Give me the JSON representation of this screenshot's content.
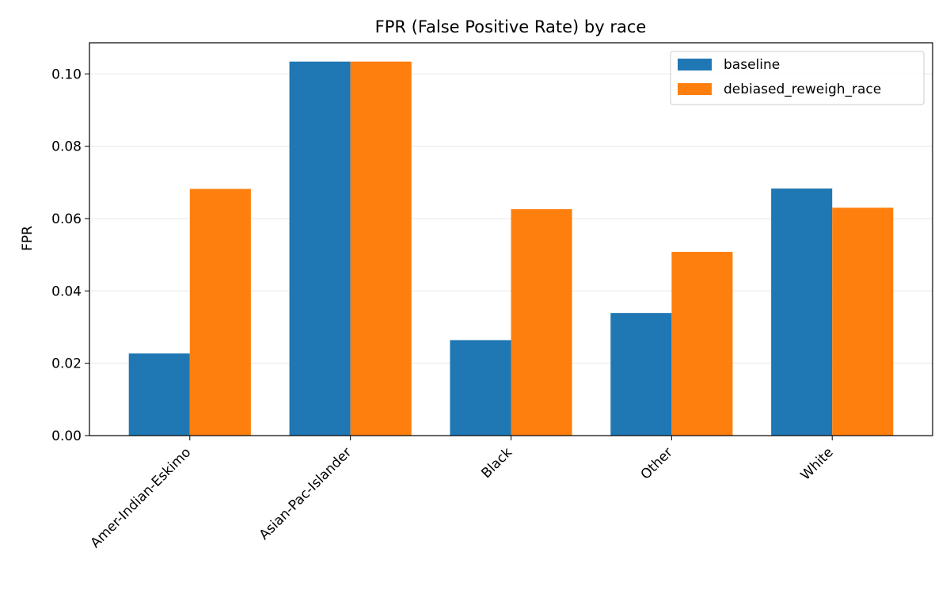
{
  "chart_data": {
    "type": "bar",
    "title": "FPR (False Positive Rate) by race",
    "xlabel": "",
    "ylabel": "FPR",
    "categories": [
      "Amer-Indian-Eskimo",
      "Asian-Pac-Islander",
      "Black",
      "Other",
      "White"
    ],
    "series": [
      {
        "name": "baseline",
        "color": "#1f77b4",
        "values": [
          0.0227,
          0.1034,
          0.0264,
          0.0339,
          0.0683
        ]
      },
      {
        "name": "debiased_reweigh_race",
        "color": "#ff7f0e",
        "values": [
          0.0682,
          0.1034,
          0.0626,
          0.0508,
          0.063
        ]
      }
    ],
    "ylim": [
      0,
      0.1086
    ],
    "yticks": [
      "0.00",
      "0.02",
      "0.04",
      "0.06",
      "0.08",
      "0.10"
    ],
    "grid": "horizontal",
    "legend_position": "top-right"
  }
}
